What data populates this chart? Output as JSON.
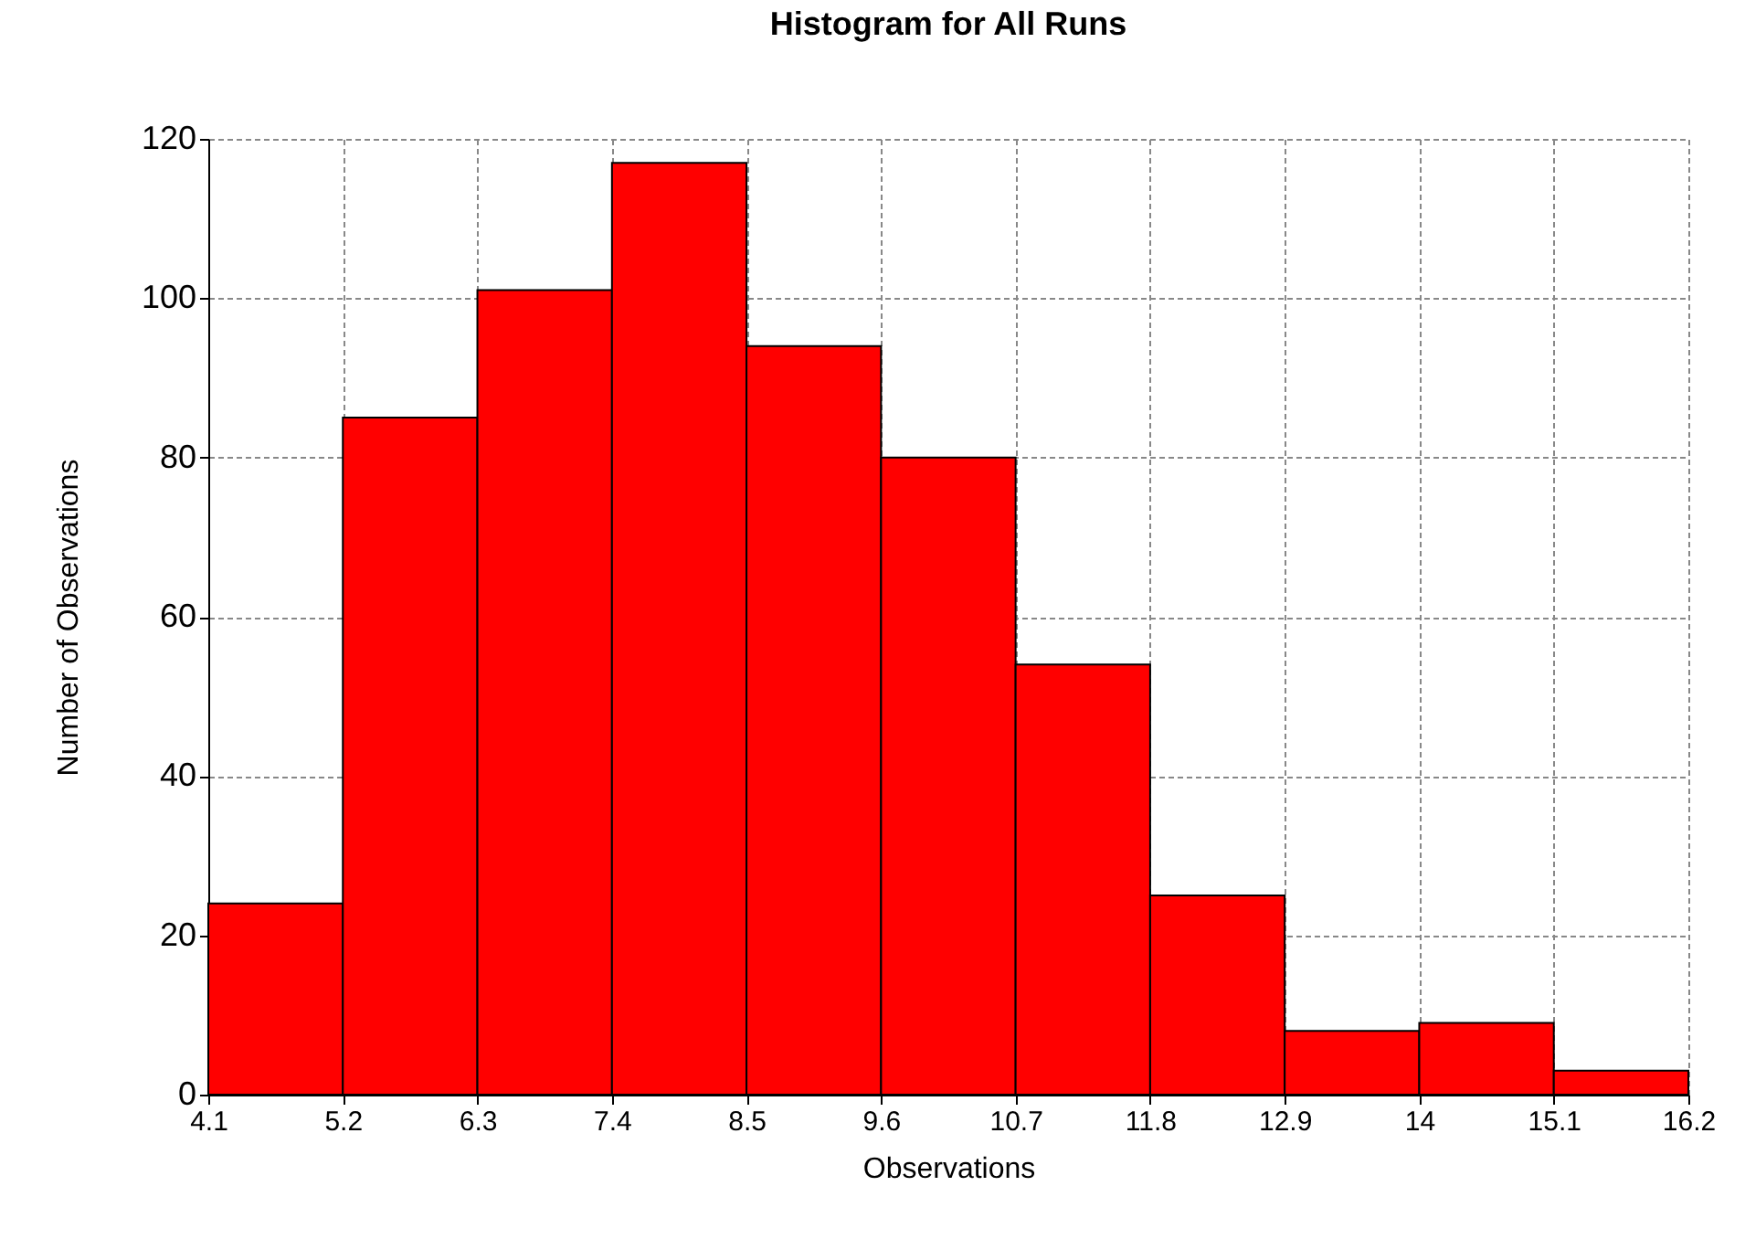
{
  "chart_data": {
    "type": "histogram",
    "title": "Histogram for All Runs",
    "xlabel": "Observations",
    "ylabel": "Number of Observations",
    "bins": [
      4.1,
      5.2,
      6.3,
      7.4,
      8.5,
      9.6,
      10.7,
      11.8,
      12.9,
      14,
      15.1,
      16.2
    ],
    "values": [
      24,
      85,
      101,
      117,
      94,
      80,
      54,
      25,
      8,
      9,
      3
    ],
    "color": "#ff0000",
    "xlim": [
      4.1,
      16.2
    ],
    "ylim": [
      0,
      120
    ],
    "xticks": [
      4.1,
      5.2,
      6.3,
      7.4,
      8.5,
      9.6,
      10.7,
      11.8,
      12.9,
      14,
      15.1,
      16.2
    ],
    "yticks": [
      0,
      20,
      40,
      60,
      80,
      100,
      120
    ],
    "grid": true
  }
}
